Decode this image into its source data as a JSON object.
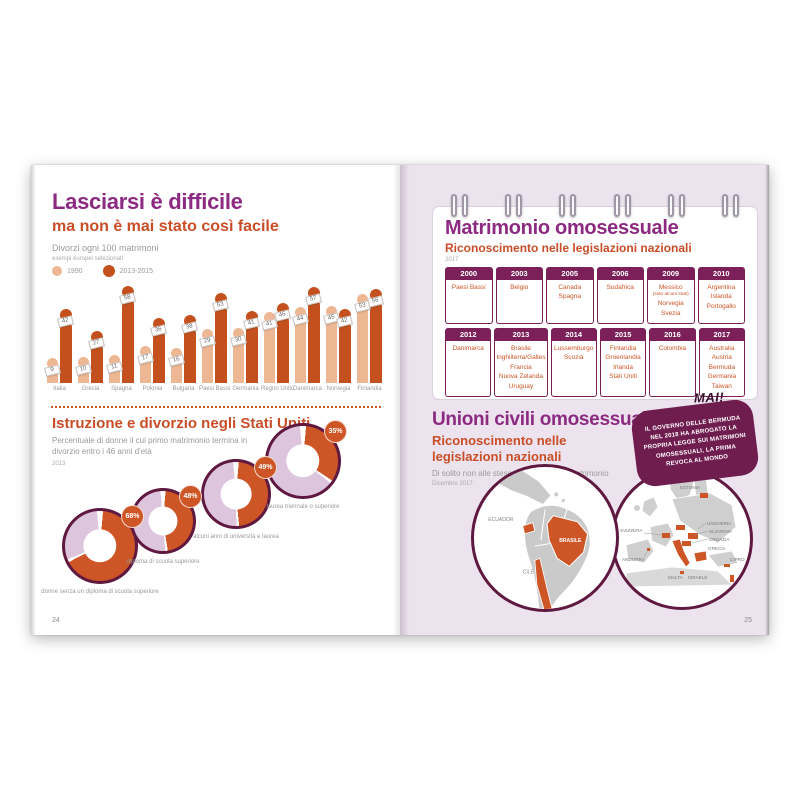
{
  "left_page": {
    "page_number": "24",
    "title": "Lasciarsi è difficile",
    "subtitle": "ma non è mai stato così facile",
    "caption": "Divorzi ogni 100 matrimoni",
    "caption_note": "esempi europei selezionati",
    "legend": [
      {
        "label": "1990",
        "color": "#eeb793"
      },
      {
        "label": "2013-2015",
        "color": "#c4511d"
      }
    ],
    "chart_data": {
      "type": "bar",
      "title": "Divorzi ogni 100 matrimoni",
      "categories": [
        "Italia",
        "Grecia",
        "Spagna",
        "Polonia",
        "Bulgaria",
        "Paesi Bassi",
        "Germania",
        "Regno Unito",
        "Danimarca",
        "Norvegia",
        "Finlandia"
      ],
      "series": [
        {
          "name": "1990",
          "color": "#eeb793",
          "values": [
            9,
            10,
            11,
            17,
            16,
            29,
            30,
            41,
            44,
            45,
            53
          ]
        },
        {
          "name": "2013-2015",
          "color": "#c4511d",
          "values": [
            42,
            27,
            58,
            36,
            38,
            53,
            41,
            46,
            57,
            42,
            56
          ]
        }
      ],
      "ylim": [
        0,
        60
      ],
      "legend_position": "top-left",
      "grid": false
    },
    "education": {
      "title": "Istruzione e divorzio negli Stati Uniti",
      "subtitle": "Percentuale di donne il cui primo matrimonio termina in divorzio entro i 46 anni d'età",
      "year": "2013",
      "chart_data": {
        "type": "pie",
        "style": "donut",
        "value_color": "#cd5526",
        "rest_color": "#dcc5dd",
        "ring_color": "#5f1840",
        "donuts": [
          {
            "pct": 68,
            "label": "donne senza un diploma di scuola superiore"
          },
          {
            "pct": 48,
            "label": "diploma di scuola superiore"
          },
          {
            "pct": 49,
            "label": "alcuni anni di università e laurea"
          },
          {
            "pct": 35,
            "label": "laurea triennale o superiore"
          }
        ]
      }
    }
  },
  "right_page": {
    "page_number": "25",
    "calendar": {
      "title": "Matrimonio omosessuale",
      "subtitle": "Riconoscimento nelle legislazioni nazionali",
      "year": "2017",
      "groups": [
        {
          "year": "2000",
          "countries": [
            "Paesi Bassi"
          ]
        },
        {
          "year": "2003",
          "countries": [
            "Belgio"
          ]
        },
        {
          "year": "2005",
          "countries": [
            "Canada",
            "Spagna"
          ]
        },
        {
          "year": "2006",
          "countries": [
            "Sudafrica"
          ]
        },
        {
          "year": "2009",
          "countries": [
            "Messico",
            "(solo alcuni stati)",
            "Norvegia",
            "Svezia"
          ]
        },
        {
          "year": "2010",
          "countries": [
            "Argentina",
            "Islanda",
            "Portogallo"
          ]
        },
        {
          "year": "2012",
          "countries": [
            "Danimarca"
          ]
        },
        {
          "year": "2013",
          "countries": [
            "Brasile",
            "Inghilterra/Galles",
            "Francia",
            "Nuova Zelanda",
            "Uruguay"
          ]
        },
        {
          "year": "2014",
          "countries": [
            "Lussemburgo",
            "Scozia"
          ]
        },
        {
          "year": "2015",
          "countries": [
            "Finlandia",
            "Groenlandia",
            "Irlanda",
            "Stati Uniti"
          ]
        },
        {
          "year": "2016",
          "countries": [
            "Colombia"
          ]
        },
        {
          "year": "2017",
          "countries": [
            "Australia",
            "Austria",
            "Bermuda",
            "Germania",
            "Taiwan"
          ]
        }
      ]
    },
    "civil_unions": {
      "title": "Unioni civili omosessuali",
      "subtitle_line1": "Riconoscimento nelle",
      "subtitle_line2": "legislazioni nazionali",
      "note": "Di solito non alle stesse condizioni del matrimonio",
      "date": "Dicembre 2017"
    },
    "bubble": {
      "shout": "MAI!",
      "text": "IL GOVERNO DELLE BERMUDA NEL 2018 HA ABROGATO LA PROPRIA LEGGE SUI MATRIMONI OMOSESSUALI, LA PRIMA REVOCA AL MONDO"
    },
    "maps": {
      "americas": {
        "labels": {
          "ecuador": "ECUADOR",
          "brasile": "BRASILE",
          "cile": "CILE"
        }
      },
      "europe": {
        "labels": {
          "estonia": "ESTONIA",
          "svizzera": "SVIZZERA",
          "andorra": "ANDORRA",
          "ungheria": "UNGHERIA",
          "slovenia": "SLOVENIA",
          "croazia": "CROAZIA",
          "grecia": "GRECIA",
          "cipro": "CIPRO",
          "malta": "MALTA",
          "israele": "ISRAELE"
        }
      }
    },
    "colors": {
      "accent_purple": "#8c2a82",
      "accent_orange": "#c94e27",
      "plum": "#6f1d4f",
      "page_bg": "#ece3ee"
    }
  }
}
